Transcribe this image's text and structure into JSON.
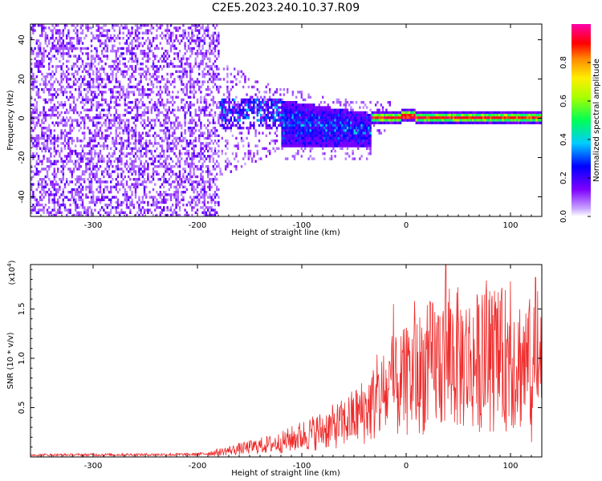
{
  "title": "C2E5.2023.240.10.37.R09",
  "chart_data": [
    {
      "type": "heatmap",
      "xlabel": "Height of straight line (km)",
      "ylabel": "Frequency (Hz)",
      "xlim": [
        -360,
        130
      ],
      "ylim": [
        -50,
        48
      ],
      "xticks": [
        -300,
        -200,
        -100,
        0,
        100
      ],
      "yticks": [
        -40,
        -20,
        0,
        20,
        40
      ],
      "colorbar": {
        "label": "Normalized spectral amplitude",
        "range": [
          0.0,
          1.0
        ],
        "ticks": [
          0.0,
          0.2,
          0.4,
          0.6,
          0.8
        ],
        "colormap": "rainbow (white-violet-blue-cyan-green-yellow-red-magenta)"
      },
      "description_points": [
        {
          "x_range": [
            -360,
            -180
          ],
          "freq_spread": [
            -50,
            48
          ],
          "amplitude": 0.1
        },
        {
          "x_range": [
            -180,
            -120
          ],
          "freq_spread": [
            -20,
            20
          ],
          "amplitude": 0.15
        },
        {
          "x_range": [
            -120,
            -40
          ],
          "freq_spread": [
            -12,
            10
          ],
          "amplitude": 0.35
        },
        {
          "x_range": [
            -40,
            130
          ],
          "freq_spread": [
            -2,
            2
          ],
          "amplitude": 0.85
        }
      ]
    },
    {
      "type": "line",
      "xlabel": "Height of straight line (km)",
      "ylabel": "SNR (10 * v/v)",
      "multiplier": "(x10^4)",
      "xlim": [
        -360,
        130
      ],
      "ylim": [
        0,
        19500
      ],
      "xticks": [
        -300,
        -200,
        -100,
        0,
        100
      ],
      "yticks": [
        5000,
        10000,
        15000
      ],
      "ytick_labels": [
        "0.5",
        "1.0",
        "1.5"
      ],
      "color": "#ee2b2b",
      "envelope": [
        {
          "x": -360,
          "y": 200
        },
        {
          "x": -200,
          "y": 250
        },
        {
          "x": -180,
          "y": 500
        },
        {
          "x": -150,
          "y": 1000
        },
        {
          "x": -120,
          "y": 1500
        },
        {
          "x": -100,
          "y": 2200
        },
        {
          "x": -80,
          "y": 2800
        },
        {
          "x": -60,
          "y": 3500
        },
        {
          "x": -40,
          "y": 4800
        },
        {
          "x": -20,
          "y": 6500
        },
        {
          "x": 0,
          "y": 7800
        },
        {
          "x": 20,
          "y": 9200
        },
        {
          "x": 40,
          "y": 10500
        },
        {
          "x": 60,
          "y": 9800
        },
        {
          "x": 80,
          "y": 10000
        },
        {
          "x": 100,
          "y": 10200
        },
        {
          "x": 120,
          "y": 9500
        },
        {
          "x": 130,
          "y": 9300
        }
      ],
      "peaks": [
        {
          "x": 38,
          "y": 19500
        },
        {
          "x": 100,
          "y": 17800
        },
        {
          "x": 120,
          "y": 18500
        },
        {
          "x": 124,
          "y": 18200
        },
        {
          "x": -12,
          "y": 15500
        },
        {
          "x": 8,
          "y": 15800
        }
      ]
    }
  ]
}
